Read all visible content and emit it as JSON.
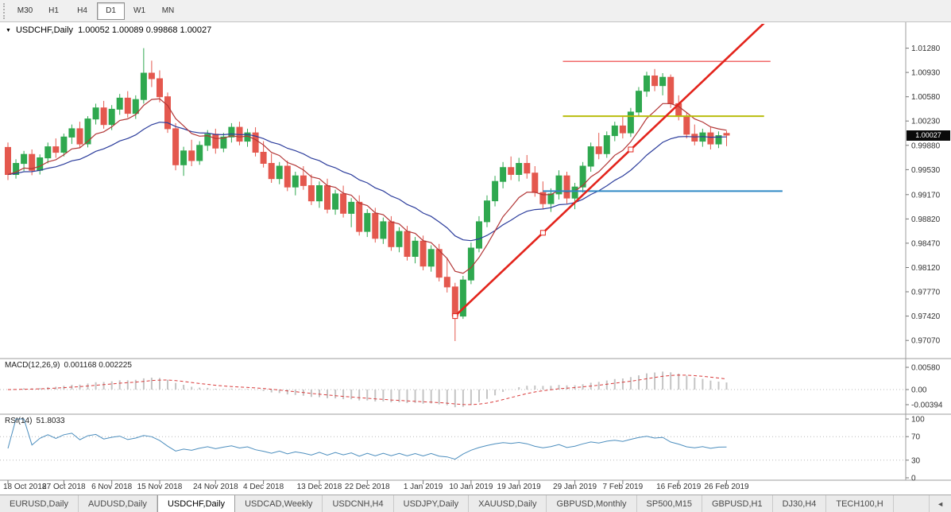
{
  "icons": {
    "symbol_dropdown": "▼",
    "tab_scroll_left": "◄"
  },
  "toolbar": {
    "timeframes": [
      {
        "label": "M30",
        "active": false
      },
      {
        "label": "H1",
        "active": false
      },
      {
        "label": "H4",
        "active": false
      },
      {
        "label": "D1",
        "active": true
      },
      {
        "label": "W1",
        "active": false
      },
      {
        "label": "MN",
        "active": false
      }
    ]
  },
  "tabs": {
    "items": [
      {
        "label": "EURUSD,Daily",
        "active": false
      },
      {
        "label": "AUDUSD,Daily",
        "active": false
      },
      {
        "label": "USDCHF,Daily",
        "active": true
      },
      {
        "label": "USDCAD,Weekly",
        "active": false
      },
      {
        "label": "USDCNH,H4",
        "active": false
      },
      {
        "label": "USDJPY,Daily",
        "active": false
      },
      {
        "label": "XAUUSD,Daily",
        "active": false
      },
      {
        "label": "GBPUSD,Monthly",
        "active": false
      },
      {
        "label": "SP500,M15",
        "active": false
      },
      {
        "label": "GBPUSD,H1",
        "active": false
      },
      {
        "label": "DJ30,H4",
        "active": false
      },
      {
        "label": "TECH100,H",
        "active": false
      }
    ]
  },
  "chart_data": {
    "type": "candlestick",
    "title": "USDCHF,Daily",
    "ohlc_text": "1.00052 1.00089 0.99868 1.00027",
    "ohlc": {
      "open": "1.00052",
      "high": "1.00089",
      "low": "0.99868",
      "close": "1.00027"
    },
    "last_close": {
      "label": "1.00027",
      "value": 1.00027
    },
    "price_range_visible": [
      0.9682,
      1.0163
    ],
    "price_ticks": [
      {
        "label": "1.01280",
        "value": 1.0128
      },
      {
        "label": "1.00930",
        "value": 1.0093
      },
      {
        "label": "1.00580",
        "value": 1.0058
      },
      {
        "label": "1.00230",
        "value": 1.0023
      },
      {
        "label": "0.99880",
        "value": 0.9988
      },
      {
        "label": "0.99530",
        "value": 0.9953
      },
      {
        "label": "0.99170",
        "value": 0.9917
      },
      {
        "label": "0.98820",
        "value": 0.9882
      },
      {
        "label": "0.98470",
        "value": 0.9847
      },
      {
        "label": "0.98120",
        "value": 0.9812
      },
      {
        "label": "0.97770",
        "value": 0.9777
      },
      {
        "label": "0.97420",
        "value": 0.9742
      },
      {
        "label": "0.97070",
        "value": 0.9707
      }
    ],
    "x_labels": [
      {
        "text": "18 Oct 2018",
        "index": 0
      },
      {
        "text": "27 Oct 2018",
        "index": 7
      },
      {
        "text": "6 Nov 2018",
        "index": 13
      },
      {
        "text": "15 Nov 2018",
        "index": 19
      },
      {
        "text": "24 Nov 2018",
        "index": 26
      },
      {
        "text": "4 Dec 2018",
        "index": 32
      },
      {
        "text": "13 Dec 2018",
        "index": 39
      },
      {
        "text": "22 Dec 2018",
        "index": 45
      },
      {
        "text": "1 Jan 2019",
        "index": 52
      },
      {
        "text": "10 Jan 2019",
        "index": 58
      },
      {
        "text": "19 Jan 2019",
        "index": 64
      },
      {
        "text": "29 Jan 2019",
        "index": 71
      },
      {
        "text": "7 Feb 2019",
        "index": 77
      },
      {
        "text": "16 Feb 2019",
        "index": 84
      },
      {
        "text": "26 Feb 2019",
        "index": 90
      }
    ],
    "candles": [
      [
        0.9985,
        0.9992,
        0.9938,
        0.9946
      ],
      [
        0.9946,
        0.9968,
        0.994,
        0.9962
      ],
      [
        0.9962,
        0.998,
        0.9951,
        0.9975
      ],
      [
        0.9975,
        0.9982,
        0.9945,
        0.9952
      ],
      [
        0.9952,
        0.9975,
        0.9946,
        0.997
      ],
      [
        0.997,
        0.9992,
        0.9962,
        0.9986
      ],
      [
        0.9986,
        0.9998,
        0.997,
        0.9978
      ],
      [
        0.9978,
        1.0005,
        0.9972,
        1.0
      ],
      [
        1.0,
        1.0018,
        0.999,
        1.0012
      ],
      [
        1.0012,
        1.0022,
        0.9984,
        0.999
      ],
      [
        0.999,
        1.003,
        0.9985,
        1.0026
      ],
      [
        1.0026,
        1.0048,
        1.0018,
        1.0042
      ],
      [
        1.0042,
        1.0052,
        1.0012,
        1.0018
      ],
      [
        1.0018,
        1.0046,
        1.001,
        1.004
      ],
      [
        1.004,
        1.0062,
        1.0032,
        1.0056
      ],
      [
        1.0056,
        1.0066,
        1.0028,
        1.0034
      ],
      [
        1.0034,
        1.006,
        1.0026,
        1.0054
      ],
      [
        1.0054,
        1.0128,
        1.0048,
        1.0092
      ],
      [
        1.0092,
        1.011,
        1.0072,
        1.0084
      ],
      [
        1.0084,
        1.0096,
        1.005,
        1.0058
      ],
      [
        1.0058,
        1.0064,
        1.0006,
        1.0012
      ],
      [
        1.0012,
        1.002,
        0.9952,
        0.996
      ],
      [
        0.996,
        0.9986,
        0.9944,
        0.998
      ],
      [
        0.998,
        0.9996,
        0.9958,
        0.9966
      ],
      [
        0.9966,
        0.9994,
        0.996,
        0.9988
      ],
      [
        0.9988,
        1.001,
        0.998,
        1.0004
      ],
      [
        1.0004,
        1.0012,
        0.9976,
        0.9984
      ],
      [
        0.9984,
        1.0006,
        0.9978,
        1.0
      ],
      [
        1.0,
        1.002,
        0.9992,
        1.0014
      ],
      [
        1.0014,
        1.0022,
        0.9988,
        0.9994
      ],
      [
        0.9994,
        1.0012,
        0.9986,
        1.0006
      ],
      [
        1.0006,
        1.0014,
        0.9972,
        0.9978
      ],
      [
        0.9978,
        0.9994,
        0.9956,
        0.9962
      ],
      [
        0.9962,
        0.9976,
        0.9934,
        0.994
      ],
      [
        0.994,
        0.9964,
        0.9932,
        0.9958
      ],
      [
        0.9958,
        0.9966,
        0.9922,
        0.9928
      ],
      [
        0.9928,
        0.995,
        0.9916,
        0.9944
      ],
      [
        0.9944,
        0.9958,
        0.9924,
        0.993
      ],
      [
        0.993,
        0.9946,
        0.9902,
        0.9908
      ],
      [
        0.9908,
        0.9936,
        0.9898,
        0.993
      ],
      [
        0.993,
        0.994,
        0.989,
        0.9896
      ],
      [
        0.9896,
        0.9924,
        0.9888,
        0.9918
      ],
      [
        0.9918,
        0.993,
        0.9884,
        0.989
      ],
      [
        0.989,
        0.9912,
        0.987,
        0.9906
      ],
      [
        0.9906,
        0.9916,
        0.9858,
        0.9864
      ],
      [
        0.9864,
        0.9896,
        0.9856,
        0.989
      ],
      [
        0.989,
        0.9898,
        0.9848,
        0.9854
      ],
      [
        0.9854,
        0.9884,
        0.9846,
        0.9878
      ],
      [
        0.9878,
        0.9886,
        0.9836,
        0.9842
      ],
      [
        0.9842,
        0.987,
        0.9834,
        0.9864
      ],
      [
        0.9864,
        0.9872,
        0.9822,
        0.9828
      ],
      [
        0.9828,
        0.9856,
        0.9818,
        0.985
      ],
      [
        0.985,
        0.9858,
        0.9808,
        0.9814
      ],
      [
        0.9814,
        0.9844,
        0.9806,
        0.9838
      ],
      [
        0.9838,
        0.9846,
        0.9792,
        0.9798
      ],
      [
        0.9798,
        0.9826,
        0.9776,
        0.9784
      ],
      [
        0.9784,
        0.979,
        0.9706,
        0.9742
      ],
      [
        0.9742,
        0.98,
        0.9738,
        0.9794
      ],
      [
        0.9794,
        0.9848,
        0.9788,
        0.984
      ],
      [
        0.984,
        0.9886,
        0.9834,
        0.9878
      ],
      [
        0.9878,
        0.9916,
        0.987,
        0.9908
      ],
      [
        0.9908,
        0.9944,
        0.99,
        0.9936
      ],
      [
        0.9936,
        0.9964,
        0.9926,
        0.9956
      ],
      [
        0.9956,
        0.9972,
        0.9938,
        0.9946
      ],
      [
        0.9946,
        0.997,
        0.9936,
        0.9962
      ],
      [
        0.9962,
        0.9974,
        0.994,
        0.9948
      ],
      [
        0.9948,
        0.9958,
        0.9914,
        0.992
      ],
      [
        0.992,
        0.9936,
        0.9896,
        0.9904
      ],
      [
        0.9904,
        0.9926,
        0.9892,
        0.9918
      ],
      [
        0.9918,
        0.9952,
        0.991,
        0.9944
      ],
      [
        0.9944,
        0.995,
        0.9904,
        0.9912
      ],
      [
        0.9912,
        0.9934,
        0.9896,
        0.9928
      ],
      [
        0.9928,
        0.9964,
        0.992,
        0.9958
      ],
      [
        0.9958,
        0.9992,
        0.995,
        0.9986
      ],
      [
        0.9986,
        1.0006,
        0.9968,
        0.9976
      ],
      [
        0.9976,
        1.0008,
        0.997,
        1.0002
      ],
      [
        1.0002,
        1.0022,
        0.9994,
        1.0016
      ],
      [
        1.0016,
        1.003,
        0.9998,
        1.0006
      ],
      [
        1.0006,
        1.0042,
        1.0,
        1.0036
      ],
      [
        1.0036,
        1.0072,
        1.003,
        1.0066
      ],
      [
        1.0066,
        1.0094,
        1.0058,
        1.0088
      ],
      [
        1.0088,
        1.0098,
        1.0066,
        1.0074
      ],
      [
        1.0074,
        1.0092,
        1.006,
        1.0086
      ],
      [
        1.0086,
        1.009,
        1.0042,
        1.0048
      ],
      [
        1.0048,
        1.006,
        1.0024,
        1.003
      ],
      [
        1.003,
        1.0036,
        0.9998,
        1.0004
      ],
      [
        1.0004,
        1.0018,
        0.9988,
        0.9994
      ],
      [
        0.9994,
        1.0012,
        0.9986,
        1.0006
      ],
      [
        1.0006,
        1.0014,
        0.9982,
        0.999
      ],
      [
        0.999,
        1.0008,
        0.9984,
        1.0002
      ],
      [
        1.00052,
        1.00089,
        0.99868,
        1.00027
      ]
    ],
    "overlays": {
      "ma_fast": {
        "type": "ema",
        "period": 8,
        "color": "#b23636"
      },
      "ma_slow": {
        "type": "ema",
        "period": 21,
        "color": "#2c3d9c"
      },
      "trendline": {
        "points_index_price": [
          [
            56,
            0.9742
          ],
          [
            78,
            0.9982
          ]
        ],
        "color": "#e3241c"
      },
      "hlines": [
        {
          "name": "resistance-red",
          "price": 1.0109,
          "from_index": 69.5,
          "to_index": 95.5,
          "color": "#f26a6a",
          "width": 1.5
        },
        {
          "name": "level-yellow",
          "price": 1.003,
          "from_index": 69.5,
          "to_index": 94.7,
          "color": "#b9bd0e",
          "width": 2
        },
        {
          "name": "support-blue",
          "price": 0.9922,
          "from_index": 67.0,
          "to_index": 97.0,
          "color": "#2f89c5",
          "width": 2
        }
      ]
    },
    "macd": {
      "label": "MACD(12,26,9)",
      "display": "0.001168 0.002225",
      "fast": 12,
      "slow": 26,
      "signal": 9,
      "scale_ticks": [
        {
          "label": "0.00580",
          "value": 0.0058
        },
        {
          "label": "0.00",
          "value": 0
        },
        {
          "label": "-0.00394",
          "value": -0.00394
        }
      ]
    },
    "rsi": {
      "label": "RSI(14)",
      "display": "51.8033",
      "period": 14,
      "levels": [
        70,
        30
      ],
      "scale_ticks": [
        {
          "label": "100",
          "value": 100
        },
        {
          "label": "70",
          "value": 70
        },
        {
          "label": "30",
          "value": 30
        },
        {
          "label": "0",
          "value": 0
        }
      ]
    },
    "colors": {
      "up": "#2fa84f",
      "down": "#e4584e",
      "macd_bar": "#c4c4c4",
      "macd_signal": "#d93a3a",
      "rsi": "#4c8ebe"
    }
  }
}
